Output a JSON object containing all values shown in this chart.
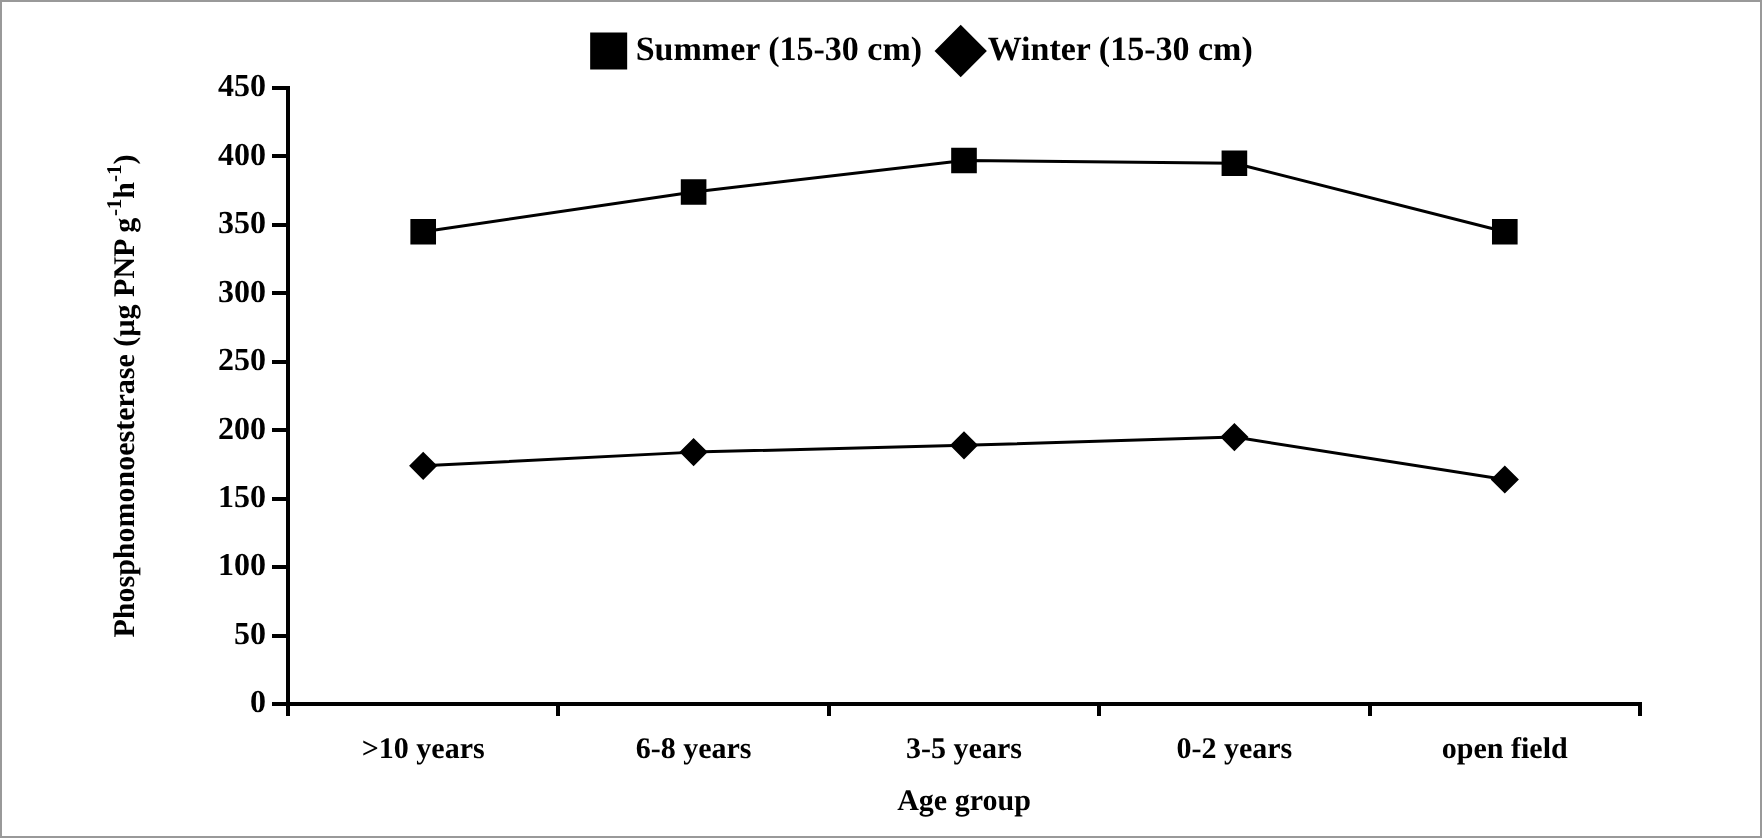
{
  "chart_data": {
    "type": "line",
    "xlabel": "Age group",
    "ylabel": "Phosphomonoesterase (µg PNP g$^{-1}$h$^{-1}$)",
    "categories": [
      ">10 years",
      "6-8 years",
      "3-5 years",
      "0-2 years",
      "open field"
    ],
    "series": [
      {
        "name": "Summer (15-30 cm)",
        "color": "#000000",
        "marker": "square",
        "values": [
          345,
          374,
          397,
          395,
          345
        ]
      },
      {
        "name": "Winter (15-30 cm)",
        "color": "#000000",
        "marker": "diamond",
        "values": [
          174,
          184,
          189,
          195,
          164
        ]
      }
    ],
    "ylim": [
      0,
      450
    ],
    "yticks": [
      0,
      50,
      100,
      150,
      200,
      250,
      300,
      350,
      400,
      450
    ],
    "grid": false,
    "legend": "top",
    "line_style": "solid"
  }
}
